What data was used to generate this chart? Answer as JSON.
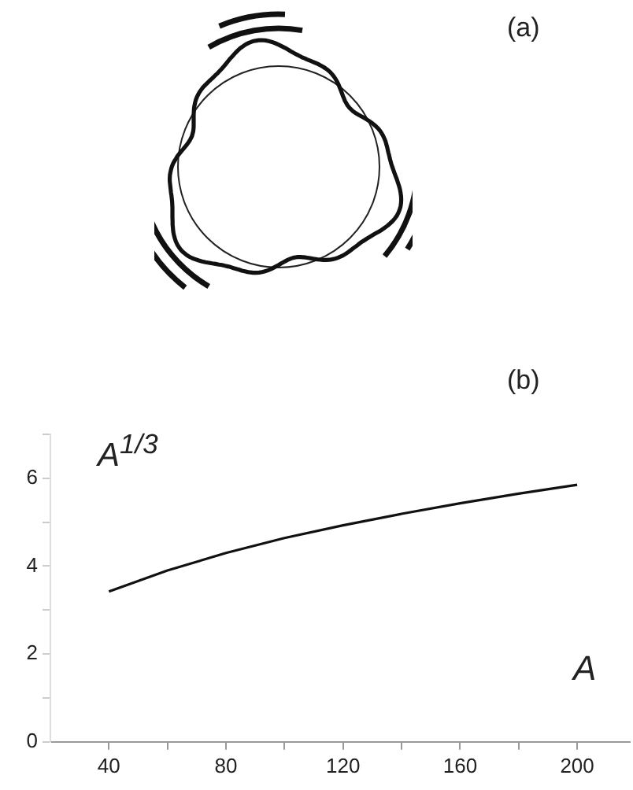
{
  "chart_data": {
    "type": "line",
    "xlabel": "A",
    "ylabel": "A$^{1/3}$",
    "annotations": [
      "(a)",
      "(b)"
    ],
    "x": [
      40,
      60,
      80,
      100,
      120,
      140,
      160,
      180,
      200
    ],
    "series": [
      {
        "color": "#111111",
        "values": [
          3.42,
          3.9,
          4.3,
          4.64,
          4.93,
          5.19,
          5.43,
          5.65,
          5.85
        ]
      }
    ],
    "xlim": [
      20,
      218
    ],
    "xticks": [
      40,
      {
        "value": 60,
        "label": null
      },
      80,
      {
        "value": 100,
        "label": null
      },
      120,
      {
        "value": 140,
        "label": null
      },
      160,
      {
        "value": 180,
        "label": null
      },
      200
    ],
    "ylim": [
      0,
      7
    ],
    "yticks": [
      0,
      {
        "value": 1,
        "label": null
      },
      2,
      {
        "value": 3,
        "label": null
      },
      4,
      {
        "value": 5,
        "label": null
      },
      6,
      {
        "value": 7,
        "label": null
      }
    ],
    "marker": "none",
    "line_style": "solid",
    "legend": false
  }
}
